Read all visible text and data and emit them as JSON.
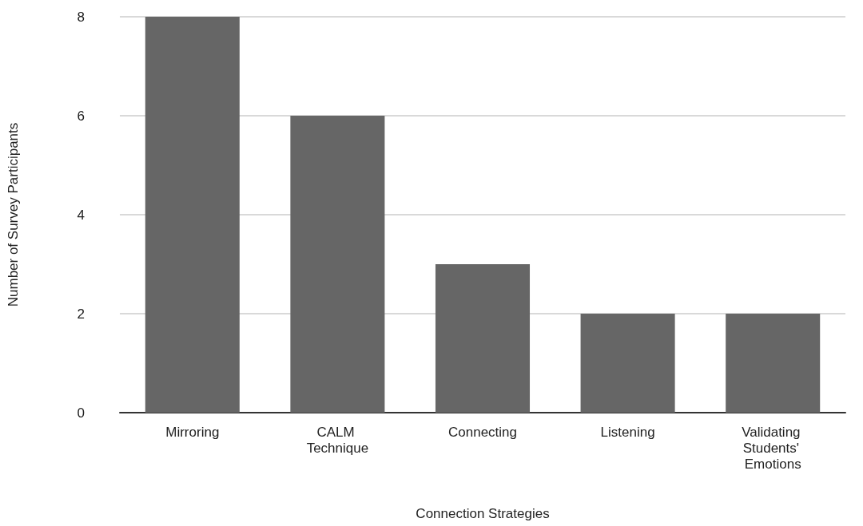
{
  "chart_data": {
    "type": "bar",
    "xlabel": "Connection Strategies",
    "ylabel": "Number of Survey Participants",
    "categories": [
      "Mirroring",
      "CALM Technique",
      "Connecting",
      "Listening",
      "Validating Students' Emotions"
    ],
    "values": [
      8,
      6,
      3,
      2,
      2
    ],
    "color": "#666666",
    "ylim": [
      0,
      8
    ],
    "yticks": [
      0,
      2,
      4,
      6,
      8
    ],
    "grid": "y"
  }
}
